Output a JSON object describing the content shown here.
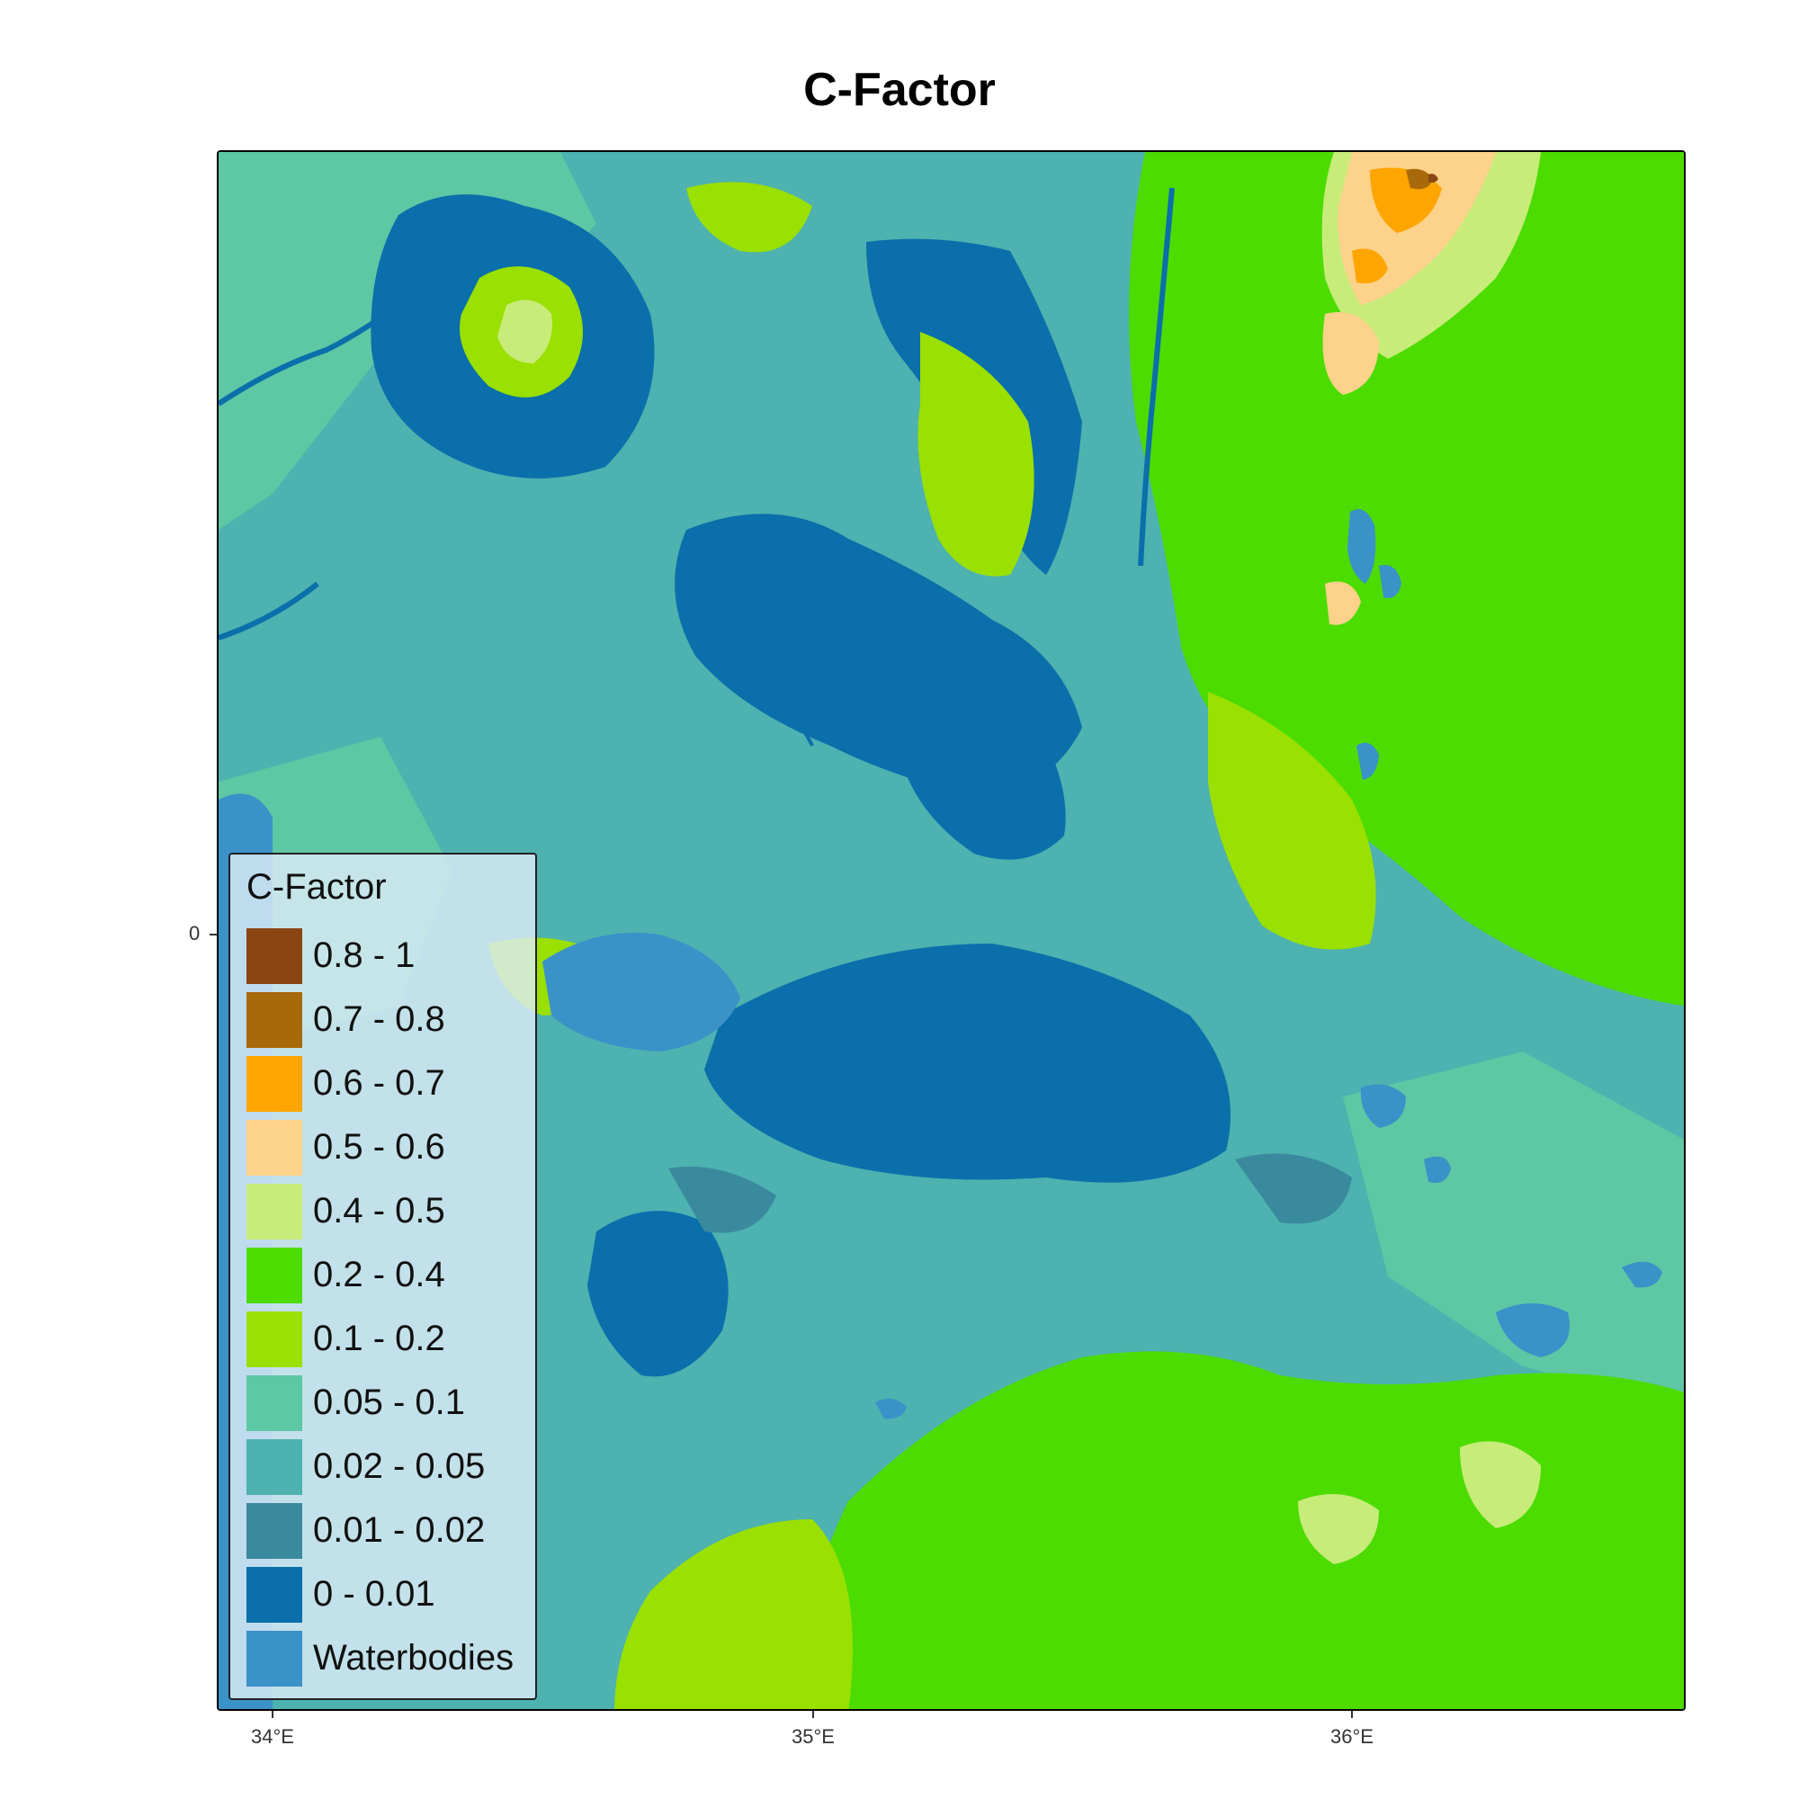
{
  "title": "C-Factor",
  "axes": {
    "x_ticks": [
      "34°E",
      "35°E",
      "36°E"
    ],
    "y_ticks": [
      "0"
    ]
  },
  "legend": {
    "title": "C-Factor",
    "items": [
      {
        "label": "0.8 - 1",
        "color": "#8B4513"
      },
      {
        "label": "0.7 - 0.8",
        "color": "#A8690A"
      },
      {
        "label": "0.6 - 0.7",
        "color": "#FFA500"
      },
      {
        "label": "0.5 - 0.6",
        "color": "#FDD28A"
      },
      {
        "label": "0.4 - 0.5",
        "color": "#C8EC7A"
      },
      {
        "label": "0.2 - 0.4",
        "color": "#4CDC00"
      },
      {
        "label": "0.1 - 0.2",
        "color": "#9AE000"
      },
      {
        "label": "0.05 - 0.1",
        "color": "#5EC7A4"
      },
      {
        "label": "0.02 - 0.05",
        "color": "#4DB2B0"
      },
      {
        "label": "0.01 - 0.02",
        "color": "#3A8A9E"
      },
      {
        "label": "0 - 0.01",
        "color": "#0A6FAA"
      },
      {
        "label": "Waterbodies",
        "color": "#3A92C8"
      }
    ]
  },
  "map_colors": {
    "background": "#4DB2B0",
    "low": "#0A6FAA",
    "lowmid": "#3A8A9E",
    "mid": "#5EC7A4",
    "green": "#4CDC00",
    "lime": "#9AE000",
    "pale": "#C8EC7A",
    "peach": "#FDD28A",
    "orange": "#FFA500",
    "brown": "#A8690A",
    "dark": "#8B4513",
    "water": "#3A92C8"
  }
}
